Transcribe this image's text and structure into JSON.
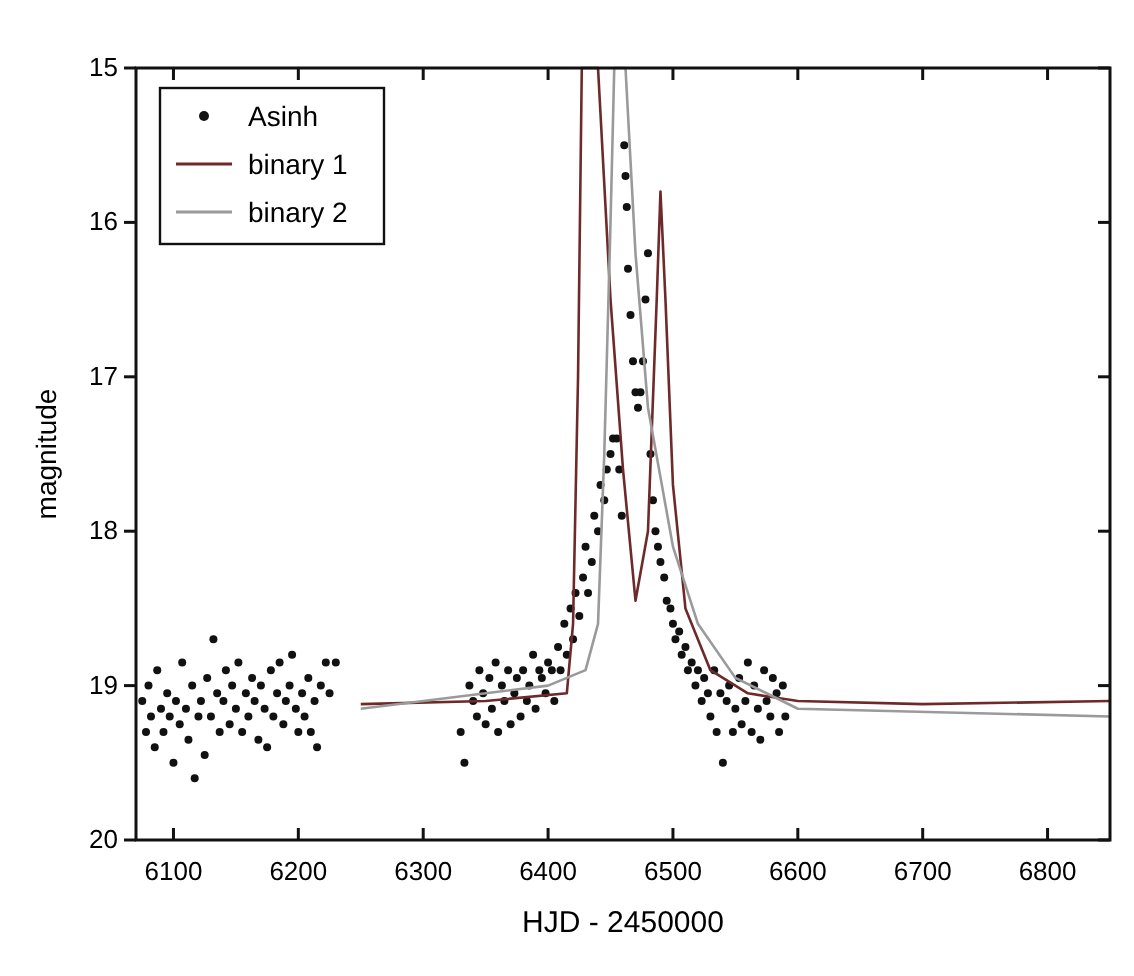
{
  "chart_data": {
    "type": "scatter",
    "xlabel": "HJD - 2450000",
    "ylabel": "magnitude",
    "xlim": [
      6070,
      6850
    ],
    "xticks": [
      6100,
      6200,
      6300,
      6400,
      6500,
      6600,
      6700,
      6800
    ],
    "ylim": [
      20,
      15
    ],
    "yticks": [
      15,
      16,
      17,
      18,
      19,
      20
    ],
    "legend": "top left",
    "grid": false,
    "series": [
      {
        "name": "Asinh",
        "marker": "circle",
        "color": "#111111",
        "x": [
          6075,
          6078,
          6080,
          6082,
          6085,
          6087,
          6090,
          6092,
          6095,
          6097,
          6100,
          6102,
          6105,
          6107,
          6110,
          6112,
          6115,
          6117,
          6120,
          6122,
          6125,
          6127,
          6130,
          6132,
          6135,
          6137,
          6140,
          6142,
          6145,
          6147,
          6150,
          6152,
          6155,
          6158,
          6160,
          6163,
          6165,
          6168,
          6170,
          6173,
          6175,
          6178,
          6180,
          6183,
          6185,
          6188,
          6190,
          6193,
          6195,
          6198,
          6200,
          6203,
          6205,
          6208,
          6210,
          6213,
          6215,
          6218,
          6222,
          6225,
          6230,
          6330,
          6333,
          6337,
          6340,
          6343,
          6345,
          6348,
          6350,
          6353,
          6355,
          6358,
          6360,
          6363,
          6365,
          6368,
          6370,
          6373,
          6375,
          6378,
          6380,
          6383,
          6385,
          6388,
          6390,
          6393,
          6395,
          6398,
          6400,
          6403,
          6405,
          6408,
          6410,
          6413,
          6415,
          6418,
          6420,
          6422,
          6425,
          6428,
          6430,
          6432,
          6435,
          6437,
          6440,
          6442,
          6445,
          6447,
          6450,
          6452,
          6455,
          6457,
          6459,
          6461,
          6462,
          6463,
          6464,
          6466,
          6468,
          6470,
          6472,
          6474,
          6476,
          6478,
          6480,
          6482,
          6484,
          6486,
          6488,
          6490,
          6493,
          6495,
          6498,
          6500,
          6502,
          6505,
          6507,
          6510,
          6512,
          6515,
          6518,
          6520,
          6523,
          6525,
          6528,
          6530,
          6533,
          6535,
          6538,
          6540,
          6543,
          6545,
          6548,
          6550,
          6553,
          6555,
          6558,
          6560,
          6563,
          6565,
          6568,
          6570,
          6573,
          6575,
          6578,
          6580,
          6583,
          6585,
          6588,
          6590
        ],
        "values": [
          19.1,
          19.3,
          19.0,
          19.2,
          19.4,
          18.9,
          19.15,
          19.3,
          19.05,
          19.2,
          19.5,
          19.1,
          19.25,
          18.85,
          19.15,
          19.35,
          19.0,
          19.6,
          19.2,
          19.1,
          19.45,
          18.95,
          19.2,
          18.7,
          19.05,
          19.3,
          19.1,
          18.9,
          19.25,
          19.0,
          19.15,
          18.85,
          19.3,
          19.05,
          19.2,
          18.95,
          19.1,
          19.35,
          19.0,
          19.15,
          19.4,
          18.9,
          19.2,
          19.05,
          18.85,
          19.25,
          19.1,
          19.0,
          18.8,
          19.15,
          19.3,
          19.05,
          19.2,
          18.95,
          19.3,
          19.1,
          19.4,
          19.0,
          18.85,
          19.05,
          18.85,
          19.3,
          19.5,
          19.0,
          19.1,
          19.2,
          18.9,
          19.05,
          19.25,
          18.95,
          19.15,
          18.85,
          19.3,
          19.0,
          19.1,
          18.9,
          19.25,
          19.05,
          18.95,
          19.2,
          18.9,
          19.1,
          19.0,
          18.8,
          19.15,
          18.9,
          18.95,
          19.05,
          18.85,
          18.9,
          19.1,
          18.75,
          18.9,
          18.6,
          18.8,
          18.5,
          18.7,
          18.4,
          18.55,
          18.3,
          18.1,
          18.4,
          18.2,
          17.9,
          18.0,
          17.7,
          17.8,
          17.6,
          17.5,
          17.4,
          17.4,
          17.6,
          17.9,
          15.5,
          15.7,
          15.9,
          16.3,
          16.6,
          16.9,
          17.1,
          17.2,
          17.1,
          16.9,
          16.5,
          16.2,
          17.5,
          17.8,
          18.0,
          18.1,
          18.2,
          18.3,
          18.45,
          18.5,
          18.6,
          18.7,
          18.65,
          18.8,
          18.75,
          18.9,
          18.85,
          19.0,
          18.9,
          19.1,
          18.95,
          19.05,
          19.2,
          18.9,
          19.3,
          19.05,
          19.5,
          19.1,
          19.0,
          19.3,
          19.15,
          18.95,
          19.25,
          19.1,
          18.85,
          19.3,
          19.0,
          19.15,
          19.35,
          18.9,
          19.1,
          19.2,
          18.95,
          19.05,
          19.3,
          19.0,
          19.2
        ]
      },
      {
        "name": "binary 1",
        "type": "line",
        "color": "#6e2a2a",
        "x": [
          6250,
          6350,
          6415,
          6420,
          6424,
          6427,
          6440,
          6450,
          6460,
          6470,
          6480,
          6487,
          6490,
          6494,
          6500,
          6510,
          6530,
          6560,
          6600,
          6700,
          6850
        ],
        "values": [
          19.12,
          19.1,
          19.05,
          18.6,
          17.0,
          15.0,
          15.0,
          16.5,
          17.6,
          18.45,
          18.0,
          16.5,
          15.8,
          16.5,
          17.7,
          18.5,
          18.9,
          19.05,
          19.1,
          19.12,
          19.1
        ]
      },
      {
        "name": "binary 2",
        "type": "line",
        "color": "#9a9a9a",
        "x": [
          6250,
          6400,
          6430,
          6440,
          6445,
          6450,
          6453,
          6462,
          6470,
          6480,
          6500,
          6520,
          6550,
          6600,
          6850
        ],
        "values": [
          19.15,
          19.0,
          18.9,
          18.6,
          17.5,
          16.0,
          15.0,
          15.0,
          16.2,
          17.2,
          18.1,
          18.6,
          18.95,
          19.15,
          19.2
        ]
      }
    ]
  }
}
